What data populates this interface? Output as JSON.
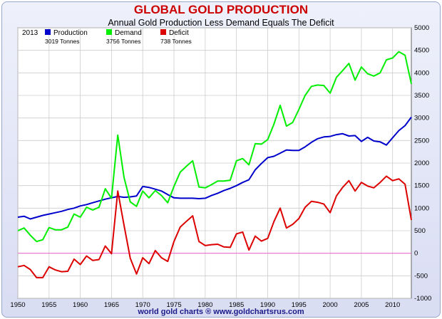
{
  "header": {
    "title": "GLOBAL GOLD PRODUCTION",
    "subtitle": "Annual Gold Production Less Demand Equals The Deficit"
  },
  "footer": {
    "text": "world gold charts ® www.goldchartsrus.com"
  },
  "legend": {
    "year": "2013",
    "items": [
      {
        "label": "Production",
        "value": "3019  Tonnes",
        "color": "#0000cc"
      },
      {
        "label": "Demand",
        "value": "3756  Tonnes",
        "color": "#00ee00"
      },
      {
        "label": "Deficit",
        "value": "738  Tonnes",
        "color": "#dd0000"
      }
    ]
  },
  "colors": {
    "zero_line": "#ee66cc",
    "grid": "#cccccc"
  },
  "chart_data": {
    "type": "line",
    "title": "GLOBAL GOLD PRODUCTION",
    "subtitle": "Annual Gold Production Less Demand Equals The Deficit",
    "xlabel": "",
    "ylabel": "",
    "xlim": [
      1950,
      2013
    ],
    "ylim": [
      -1000,
      5000
    ],
    "x_ticks": [
      1950,
      1955,
      1960,
      1965,
      1970,
      1975,
      1980,
      1985,
      1990,
      1995,
      2000,
      2005,
      2010
    ],
    "y_ticks": [
      -1000,
      -500,
      0,
      500,
      1000,
      1500,
      2000,
      2500,
      3000,
      3500,
      4000,
      4500,
      5000
    ],
    "grid": true,
    "legend_position": "top-left",
    "x": [
      1950,
      1951,
      1952,
      1953,
      1954,
      1955,
      1956,
      1957,
      1958,
      1959,
      1960,
      1961,
      1962,
      1963,
      1964,
      1965,
      1966,
      1967,
      1968,
      1969,
      1970,
      1971,
      1972,
      1973,
      1974,
      1975,
      1976,
      1977,
      1978,
      1979,
      1980,
      1981,
      1982,
      1983,
      1984,
      1985,
      1986,
      1987,
      1988,
      1989,
      1990,
      1991,
      1992,
      1993,
      1994,
      1995,
      1996,
      1997,
      1998,
      1999,
      2000,
      2001,
      2002,
      2003,
      2004,
      2005,
      2006,
      2007,
      2008,
      2009,
      2010,
      2011,
      2012,
      2013
    ],
    "series": [
      {
        "name": "Production",
        "color": "#0000cc",
        "values": [
          800,
          820,
          760,
          800,
          840,
          870,
          900,
          930,
          970,
          1000,
          1050,
          1080,
          1120,
          1160,
          1200,
          1230,
          1260,
          1240,
          1250,
          1270,
          1480,
          1460,
          1420,
          1380,
          1300,
          1230,
          1220,
          1220,
          1220,
          1210,
          1220,
          1280,
          1330,
          1390,
          1440,
          1500,
          1570,
          1630,
          1850,
          1990,
          2120,
          2150,
          2220,
          2290,
          2280,
          2280,
          2360,
          2460,
          2540,
          2580,
          2590,
          2630,
          2650,
          2600,
          2610,
          2480,
          2570,
          2490,
          2470,
          2400,
          2560,
          2720,
          2830,
          3019
        ]
      },
      {
        "name": "Demand",
        "color": "#00ee00",
        "values": [
          500,
          560,
          400,
          260,
          300,
          570,
          520,
          520,
          580,
          870,
          800,
          1020,
          960,
          1020,
          1430,
          1220,
          2620,
          1680,
          1140,
          1040,
          1380,
          1230,
          1390,
          1280,
          1120,
          1480,
          1800,
          1930,
          2050,
          1470,
          1450,
          1520,
          1600,
          1600,
          1620,
          2050,
          2100,
          1960,
          2430,
          2420,
          2520,
          2860,
          3280,
          2820,
          2900,
          3190,
          3500,
          3700,
          3730,
          3720,
          3550,
          3900,
          4050,
          4210,
          3840,
          4130,
          3980,
          3930,
          4000,
          4290,
          4330,
          4470,
          4390,
          3756
        ]
      },
      {
        "name": "Deficit",
        "color": "#dd0000",
        "values": [
          -300,
          -270,
          -360,
          -540,
          -540,
          -300,
          -370,
          -410,
          -400,
          -130,
          -250,
          -60,
          -160,
          -140,
          160,
          -10,
          1380,
          620,
          -110,
          -460,
          -100,
          -230,
          60,
          -100,
          -180,
          260,
          580,
          710,
          830,
          260,
          170,
          190,
          200,
          140,
          130,
          430,
          470,
          70,
          380,
          270,
          330,
          700,
          1000,
          560,
          640,
          770,
          1020,
          1150,
          1130,
          1090,
          900,
          1270,
          1460,
          1610,
          1380,
          1570,
          1490,
          1450,
          1570,
          1710,
          1610,
          1650,
          1530,
          738
        ]
      }
    ]
  }
}
